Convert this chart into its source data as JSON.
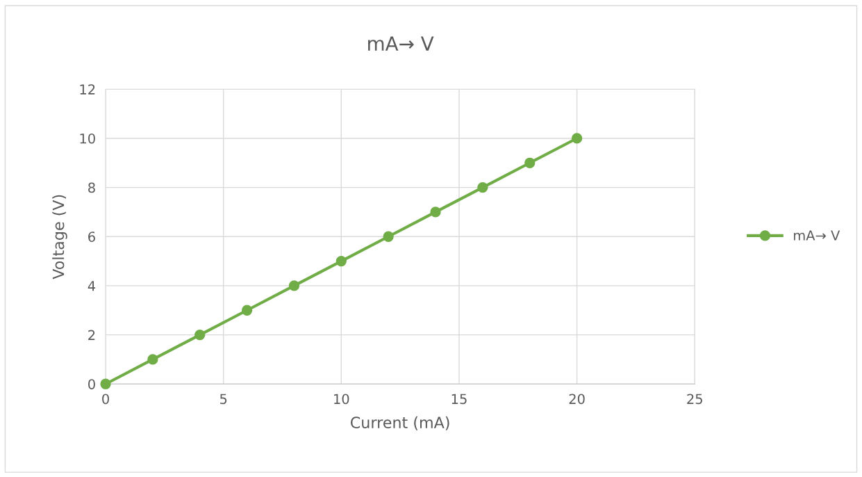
{
  "chart_data": {
    "type": "line",
    "title": "mA→ V",
    "xlabel": "Current (mA)",
    "ylabel": "Voltage (V)",
    "series": [
      {
        "name": "mA→ V",
        "color": "#70ad47",
        "x": [
          0,
          2,
          4,
          6,
          8,
          10,
          12,
          14,
          16,
          18,
          20
        ],
        "values": [
          0,
          1,
          2,
          3,
          4,
          5,
          6,
          7,
          8,
          9,
          10
        ]
      }
    ],
    "xlim": [
      0,
      25
    ],
    "xticks": [
      0,
      5,
      10,
      15,
      20,
      25
    ],
    "ylim": [
      0,
      12
    ],
    "yticks": [
      0,
      2,
      4,
      6,
      8,
      10,
      12
    ],
    "grid": true,
    "legend": "right",
    "marker": "circle",
    "line_style": "solid"
  }
}
